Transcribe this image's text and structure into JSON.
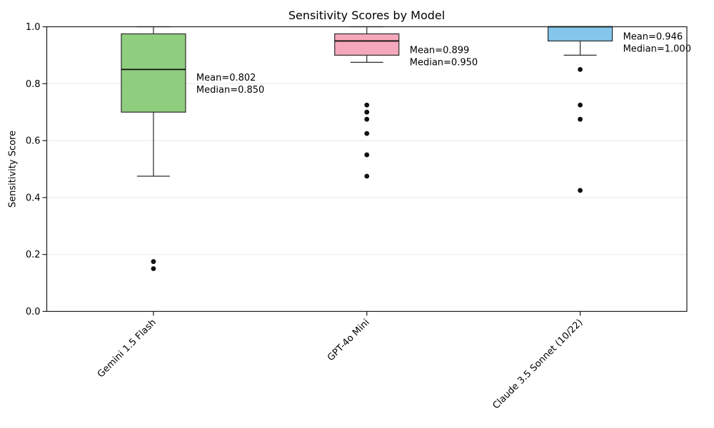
{
  "chart_data": {
    "type": "boxplot",
    "title": "Sensitivity Scores by Model",
    "xlabel": "",
    "ylabel": "Sensitivity Score",
    "ylim": [
      0.0,
      1.0
    ],
    "yticks": [
      0.0,
      0.2,
      0.4,
      0.6,
      0.8,
      1.0
    ],
    "grid": "horizontal",
    "legend": "none",
    "categories": [
      "Gemini 1.5 Flash",
      "GPT-4o Mini",
      "Claude 3.5 Sonnet (10/22)"
    ],
    "colors": {
      "axis": "#1a1a1a",
      "grid": "#e8e8e8",
      "box_edge": "#2b2b2b",
      "median_line": "#111111",
      "outlier": "#111111",
      "text": "#000000"
    },
    "series": [
      {
        "name": "Gemini 1.5 Flash",
        "color": "#90CE7F",
        "whisker_low": 0.475,
        "q1": 0.7,
        "median": 0.85,
        "q3": 0.975,
        "whisker_high": 1.0,
        "mean": 0.802,
        "outliers": [
          0.175,
          0.15
        ],
        "annotation": [
          "Mean=0.802",
          "Median=0.850"
        ]
      },
      {
        "name": "GPT-4o Mini",
        "color": "#F5A8BB",
        "whisker_low": 0.875,
        "q1": 0.9,
        "median": 0.95,
        "q3": 0.975,
        "whisker_high": 1.0,
        "mean": 0.899,
        "outliers": [
          0.725,
          0.7,
          0.675,
          0.625,
          0.55,
          0.475
        ],
        "annotation": [
          "Mean=0.899",
          "Median=0.950"
        ]
      },
      {
        "name": "Claude 3.5 Sonnet (10/22)",
        "color": "#85C6EC",
        "whisker_low": 0.9,
        "q1": 0.95,
        "median": 1.0,
        "q3": 1.0,
        "whisker_high": 1.0,
        "mean": 0.946,
        "outliers": [
          0.85,
          0.725,
          0.675,
          0.425
        ],
        "annotation": [
          "Mean=0.946",
          "Median=1.000"
        ]
      }
    ]
  }
}
